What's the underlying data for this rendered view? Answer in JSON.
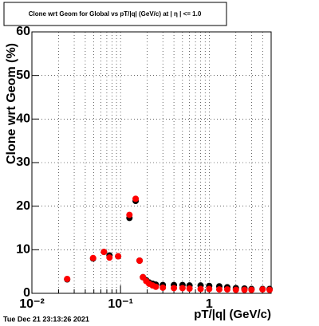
{
  "chart_data": {
    "type": "scatter",
    "title": "Clone wrt Geom for Global vs pT/|q| (GeV/c) at | η | <= 1.0",
    "x_label": "pT/|q| (GeV/c)",
    "y_label": "Clone wrt Geom (%)",
    "timestamp": "Tue Dec 21 23:13:26 2021",
    "x": [
      0.025,
      0.049,
      0.065,
      0.075,
      0.094,
      0.126,
      0.148,
      0.164,
      0.179,
      0.195,
      0.21,
      0.23,
      0.25,
      0.3,
      0.4,
      0.5,
      0.6,
      0.8,
      1.0,
      1.3,
      1.6,
      2.0,
      2.5,
      3.0,
      4.0,
      4.8
    ],
    "series": [
      {
        "color": "#000000",
        "values": [
          3.2,
          8,
          9.5,
          8.7,
          8.5,
          17.3,
          21.2,
          7.5,
          3.7,
          3.0,
          2.5,
          2.2,
          2.0,
          1.9,
          1.9,
          1.9,
          1.8,
          1.8,
          1.7,
          1.6,
          1.4,
          1.2,
          1.1,
          1.0,
          1.0,
          1.0
        ]
      },
      {
        "color": "#ff0000",
        "values": [
          3.3,
          8.1,
          9.5,
          8.2,
          8.5,
          18,
          21.7,
          7.5,
          3.7,
          2.8,
          2.2,
          1.8,
          1.5,
          1.3,
          1.2,
          1.2,
          1.1,
          1.0,
          1.0,
          0.9,
          0.9,
          0.8,
          0.8,
          0.8,
          0.9,
          0.8
        ]
      }
    ],
    "xlog": true,
    "xlim": [
      0.01,
      5
    ],
    "ylim": [
      0,
      60
    ],
    "xticks": [
      {
        "value": 0.01,
        "label": "10⁻²"
      },
      {
        "value": 0.1,
        "label": "10⁻¹"
      },
      1
    ],
    "yticks": [
      0,
      10,
      20,
      30,
      40,
      50,
      60
    ],
    "grid": true
  }
}
